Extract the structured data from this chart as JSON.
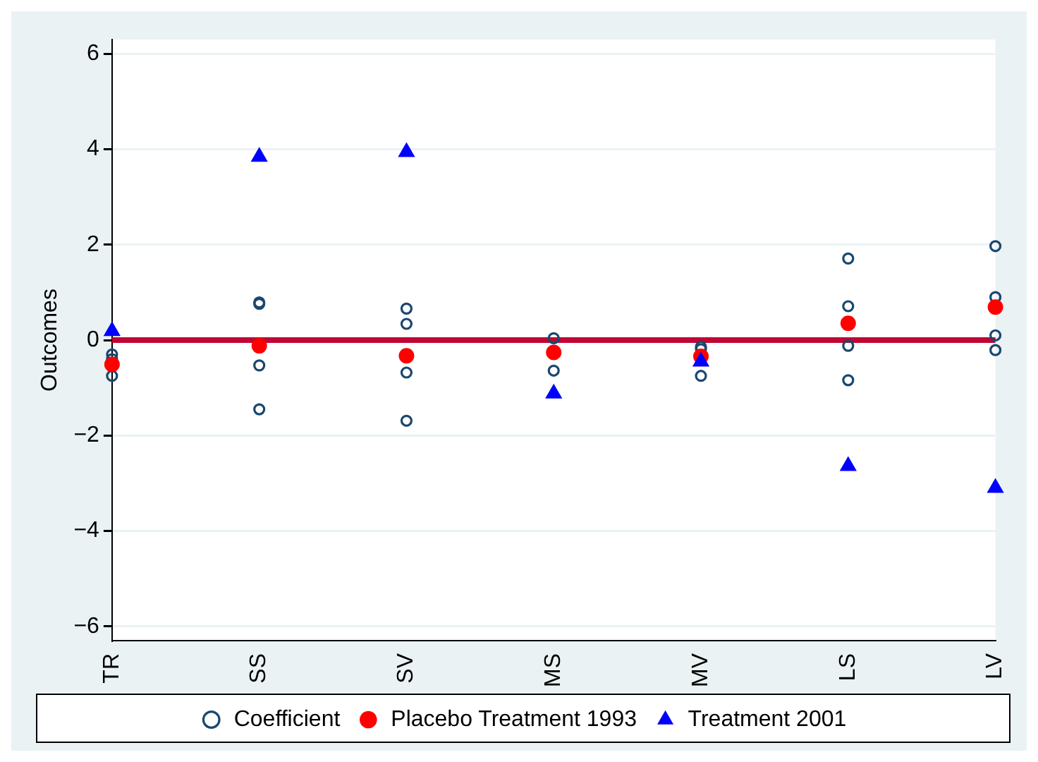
{
  "chart_data": {
    "type": "scatter",
    "ylabel": "Outcomes",
    "categories": [
      "TR",
      "SS",
      "SV",
      "MS",
      "MV",
      "LS",
      "LV"
    ],
    "ylim": [
      -6.3,
      6.3
    ],
    "yticks": [
      {
        "value": -6,
        "label": "−6"
      },
      {
        "value": -4,
        "label": "−4"
      },
      {
        "value": -2,
        "label": "−2"
      },
      0,
      2,
      4,
      6
    ],
    "grid": "y",
    "legend": "bottom",
    "ref_lines": [
      {
        "axis": "y",
        "value": 0,
        "color": "#c10534"
      }
    ],
    "series": [
      {
        "name": "Coefficient",
        "color": "#1a476f",
        "marker": "circle",
        "x": [
          "TR",
          "TR",
          "TR",
          "SS",
          "SS",
          "SS",
          "SS",
          "SV",
          "SV",
          "SV",
          "SV",
          "MS",
          "MS",
          "MV",
          "MV",
          "MV",
          "LS",
          "LS",
          "LS",
          "LS",
          "LV",
          "LV",
          "LV",
          "LV"
        ],
        "values": [
          -0.3,
          -0.4,
          -0.75,
          0.79,
          0.76,
          -0.53,
          -1.45,
          0.66,
          0.34,
          -0.68,
          -1.69,
          0.04,
          -0.64,
          -0.14,
          -0.19,
          -0.75,
          1.71,
          0.71,
          -0.12,
          -0.84,
          1.97,
          0.9,
          0.1,
          -0.21
        ]
      },
      {
        "name": "Placebo Treatment 1993",
        "color": "#ff0000",
        "marker": "circle",
        "x": [
          "TR",
          "SS",
          "SV",
          "MS",
          "MV",
          "LS",
          "LV"
        ],
        "values": [
          -0.51,
          -0.12,
          -0.33,
          -0.26,
          -0.34,
          0.35,
          0.69
        ]
      },
      {
        "name": "Treatment 2001",
        "color": "#0000ff",
        "marker": "triangle",
        "x": [
          "TR",
          "SS",
          "SV",
          "MS",
          "MV",
          "LS",
          "LV"
        ],
        "values": [
          0.19,
          3.84,
          3.94,
          -1.12,
          -0.45,
          -2.64,
          -3.1
        ]
      }
    ]
  }
}
